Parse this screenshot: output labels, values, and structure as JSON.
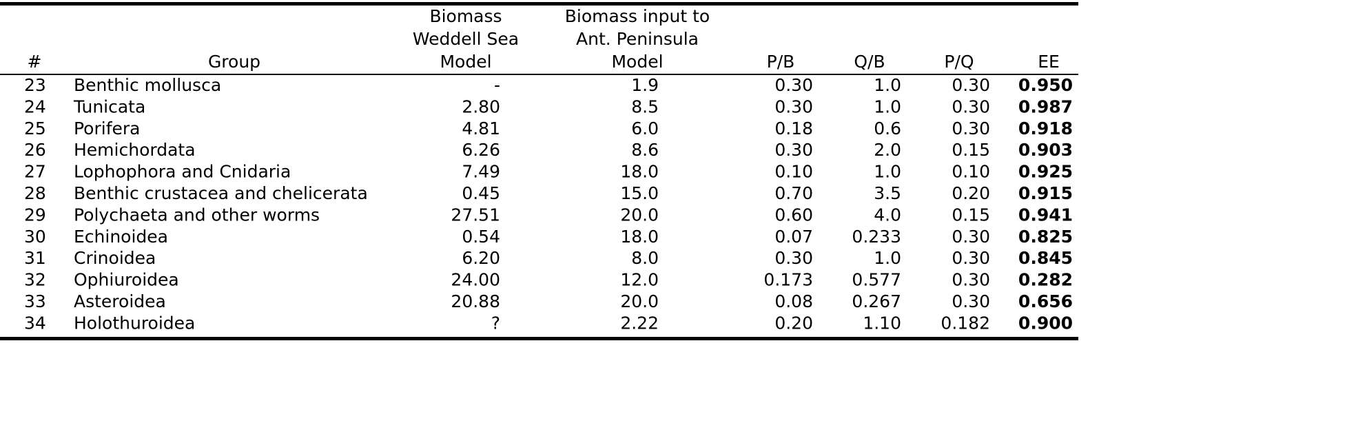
{
  "table": {
    "header": [
      [
        "#"
      ],
      [
        "Group"
      ],
      [
        "Biomass",
        "Weddell Sea",
        "Model"
      ],
      [
        "Biomass input to",
        "Ant. Peninsula",
        "Model"
      ],
      [
        "P/B"
      ],
      [
        "Q/B"
      ],
      [
        "P/Q"
      ],
      [
        "EE"
      ]
    ],
    "rows": [
      [
        "23",
        "Benthic mollusca",
        "-",
        "1.9",
        "0.30",
        "1.0",
        "0.30",
        "0.950"
      ],
      [
        "24",
        "Tunicata",
        "2.80",
        "8.5",
        "0.30",
        "1.0",
        "0.30",
        "0.987"
      ],
      [
        "25",
        "Porifera",
        "4.81",
        "6.0",
        "0.18",
        "0.6",
        "0.30",
        "0.918"
      ],
      [
        "26",
        "Hemichordata",
        "6.26",
        "8.6",
        "0.30",
        "2.0",
        "0.15",
        "0.903"
      ],
      [
        "27",
        "Lophophora and Cnidaria",
        "7.49",
        "18.0",
        "0.10",
        "1.0",
        "0.10",
        "0.925"
      ],
      [
        "28",
        "Benthic crustacea and chelicerata",
        "0.45",
        "15.0",
        "0.70",
        "3.5",
        "0.20",
        "0.915"
      ],
      [
        "29",
        "Polychaeta and other worms",
        "27.51",
        "20.0",
        "0.60",
        "4.0",
        "0.15",
        "0.941"
      ],
      [
        "30",
        "Echinoidea",
        "0.54",
        "18.0",
        "0.07",
        "0.233",
        "0.30",
        "0.825"
      ],
      [
        "31",
        "Crinoidea",
        "6.20",
        "8.0",
        "0.30",
        "1.0",
        "0.30",
        "0.845"
      ],
      [
        "32",
        "Ophiuroidea",
        "24.00",
        "12.0",
        "0.173",
        "0.577",
        "0.30",
        "0.282"
      ],
      [
        "33",
        "Asteroidea",
        "20.88",
        "20.0",
        "0.08",
        "0.267",
        "0.30",
        "0.656"
      ],
      [
        "34",
        "Holothuroidea",
        "?",
        "2.22",
        "0.20",
        "1.10",
        "0.182",
        "0.900"
      ]
    ]
  }
}
